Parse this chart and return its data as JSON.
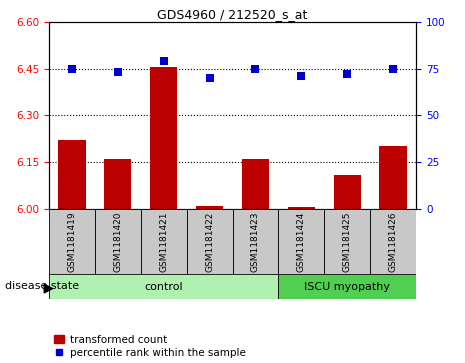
{
  "title": "GDS4960 / 212520_s_at",
  "samples": [
    "GSM1181419",
    "GSM1181420",
    "GSM1181421",
    "GSM1181422",
    "GSM1181423",
    "GSM1181424",
    "GSM1181425",
    "GSM1181426"
  ],
  "bar_values": [
    6.22,
    6.16,
    6.455,
    6.01,
    6.16,
    6.005,
    6.108,
    6.2
  ],
  "percentile_values": [
    75,
    73,
    79,
    70,
    75,
    71,
    72,
    75
  ],
  "ylim_left": [
    6.0,
    6.6
  ],
  "ylim_right": [
    0,
    100
  ],
  "yticks_left": [
    6.0,
    6.15,
    6.3,
    6.45,
    6.6
  ],
  "yticks_right": [
    0,
    25,
    50,
    75,
    100
  ],
  "bar_color": "#bb0000",
  "dot_color": "#0000cc",
  "control_group_indices": [
    0,
    1,
    2,
    3,
    4
  ],
  "iscu_group_indices": [
    5,
    6,
    7
  ],
  "control_label": "control",
  "iscu_label": "ISCU myopathy",
  "disease_state_label": "disease state",
  "legend_bar_label": "transformed count",
  "legend_dot_label": "percentile rank within the sample",
  "sample_bg_color": "#c8c8c8",
  "control_bg": "#b0f0b0",
  "iscu_bg": "#50d050",
  "bar_width": 0.6,
  "dot_size": 35,
  "tick_fontsize": 7.5,
  "title_fontsize": 9,
  "sample_fontsize": 6.5,
  "disease_fontsize": 8,
  "legend_fontsize": 7.5
}
